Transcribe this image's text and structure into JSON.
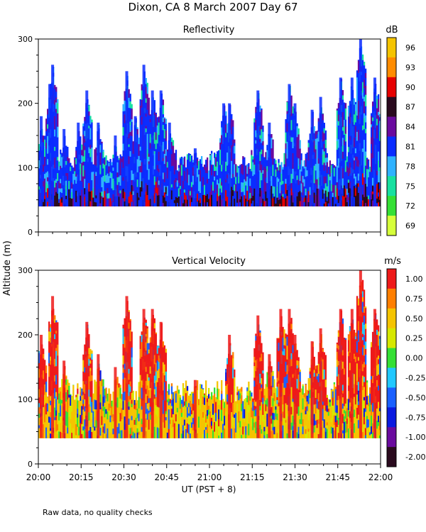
{
  "title": "Dixon, CA  8 March 2007  Day  67",
  "ylabel": "Altitude (m)",
  "xlabel": "UT  (PST + 8)",
  "footnote": "Raw data, no quality checks",
  "xticks": [
    "20:00",
    "20:15",
    "20:30",
    "20:45",
    "21:00",
    "21:15",
    "21:30",
    "21:45",
    "22:00"
  ],
  "chart_data": [
    {
      "type": "heatmap",
      "title": "Reflectivity",
      "xlabel": "UT  (PST + 8)",
      "ylabel": "Altitude (m)",
      "xlim": [
        0,
        120
      ],
      "ylim": [
        0,
        300
      ],
      "yticks": [
        0,
        100,
        200,
        300
      ],
      "data_floor": 40,
      "colorbar": {
        "unit": "dB",
        "labels": [
          "96",
          "93",
          "90",
          "87",
          "84",
          "81",
          "78",
          "75",
          "72",
          "69"
        ],
        "colors": [
          "#f5c400",
          "#ff8c00",
          "#e60000",
          "#2a0a1e",
          "#6a0a9e",
          "#0a2cff",
          "#2fb2ff",
          "#18e0a0",
          "#35e035",
          "#d6ff3a"
        ]
      },
      "plumes": [
        {
          "t": 1,
          "top": 180
        },
        {
          "t": 4,
          "top": 230
        },
        {
          "t": 5,
          "top": 260
        },
        {
          "t": 9,
          "top": 160
        },
        {
          "t": 14,
          "top": 170
        },
        {
          "t": 17,
          "top": 220
        },
        {
          "t": 21,
          "top": 170
        },
        {
          "t": 27,
          "top": 150
        },
        {
          "t": 31,
          "top": 250
        },
        {
          "t": 34,
          "top": 180
        },
        {
          "t": 37,
          "top": 260
        },
        {
          "t": 40,
          "top": 220
        },
        {
          "t": 43,
          "top": 220
        },
        {
          "t": 46,
          "top": 170
        },
        {
          "t": 55,
          "top": 130
        },
        {
          "t": 65,
          "top": 200
        },
        {
          "t": 67,
          "top": 200
        },
        {
          "t": 77,
          "top": 220
        },
        {
          "t": 81,
          "top": 170
        },
        {
          "t": 88,
          "top": 230
        },
        {
          "t": 90,
          "top": 200
        },
        {
          "t": 96,
          "top": 190
        },
        {
          "t": 99,
          "top": 210
        },
        {
          "t": 106,
          "top": 240
        },
        {
          "t": 110,
          "top": 240
        },
        {
          "t": 113,
          "top": 300
        },
        {
          "t": 118,
          "top": 240
        }
      ]
    },
    {
      "type": "heatmap",
      "title": "Vertical Velocity",
      "xlabel": "UT  (PST + 8)",
      "ylabel": "Altitude (m)",
      "xlim": [
        0,
        120
      ],
      "ylim": [
        0,
        300
      ],
      "yticks": [
        0,
        100,
        200,
        300
      ],
      "data_floor": 40,
      "colorbar": {
        "unit": "m/s",
        "labels": [
          "1.00",
          "0.75",
          "0.50",
          "0.25",
          "0.00",
          "-0.25",
          "-0.50",
          "-0.75",
          "-1.00",
          "-2.00"
        ],
        "colors": [
          "#ee1a1a",
          "#ff7f00",
          "#f5c400",
          "#d6e800",
          "#35e035",
          "#21c8ff",
          "#1a60ff",
          "#0a1ae0",
          "#6a0a9e",
          "#2a0a1e"
        ]
      },
      "plumes": [
        {
          "t": 1,
          "top": 200
        },
        {
          "t": 5,
          "top": 260
        },
        {
          "t": 9,
          "top": 160
        },
        {
          "t": 17,
          "top": 220
        },
        {
          "t": 21,
          "top": 170
        },
        {
          "t": 27,
          "top": 150
        },
        {
          "t": 31,
          "top": 260
        },
        {
          "t": 37,
          "top": 240
        },
        {
          "t": 40,
          "top": 240
        },
        {
          "t": 43,
          "top": 220
        },
        {
          "t": 55,
          "top": 130
        },
        {
          "t": 67,
          "top": 200
        },
        {
          "t": 77,
          "top": 230
        },
        {
          "t": 81,
          "top": 170
        },
        {
          "t": 85,
          "top": 240
        },
        {
          "t": 88,
          "top": 240
        },
        {
          "t": 90,
          "top": 200
        },
        {
          "t": 96,
          "top": 190
        },
        {
          "t": 99,
          "top": 210
        },
        {
          "t": 106,
          "top": 240
        },
        {
          "t": 110,
          "top": 240
        },
        {
          "t": 113,
          "top": 300
        },
        {
          "t": 118,
          "top": 240
        }
      ]
    }
  ]
}
